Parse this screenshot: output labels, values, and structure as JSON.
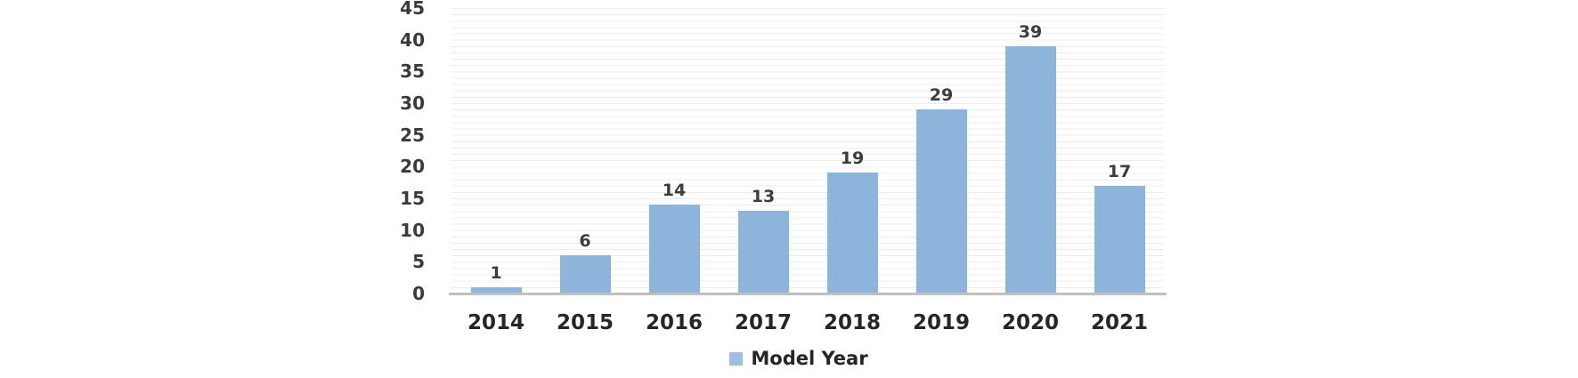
{
  "chart_data": {
    "type": "bar",
    "categories": [
      "2014",
      "2015",
      "2016",
      "2017",
      "2018",
      "2019",
      "2020",
      "2021"
    ],
    "series": [
      {
        "name": "Model Year",
        "values": [
          1,
          6,
          14,
          13,
          19,
          29,
          39,
          17
        ]
      }
    ],
    "data_labels": [
      "1",
      "6",
      "14",
      "13",
      "19",
      "29",
      "39",
      "17"
    ],
    "title": "",
    "xlabel": "",
    "ylabel": "",
    "ylim": [
      0,
      45
    ],
    "ytick_step": 5,
    "yticks": [
      45,
      40,
      35,
      30,
      25,
      20,
      15,
      10,
      5,
      0
    ],
    "grid": "minor-horizontal-every-1-unit",
    "legend": {
      "position": "bottom-center",
      "label": "Model Year",
      "swatch_color": "#9bc0e3"
    },
    "colors": {
      "bar": "#8db5dc",
      "axis_line": "#bfbfbf",
      "gridline": "#ececec",
      "ytick_text": "#3a3a3a",
      "category_text": "#262626",
      "value_label_text": "#3d3d3d",
      "background": "#ffffff"
    }
  }
}
